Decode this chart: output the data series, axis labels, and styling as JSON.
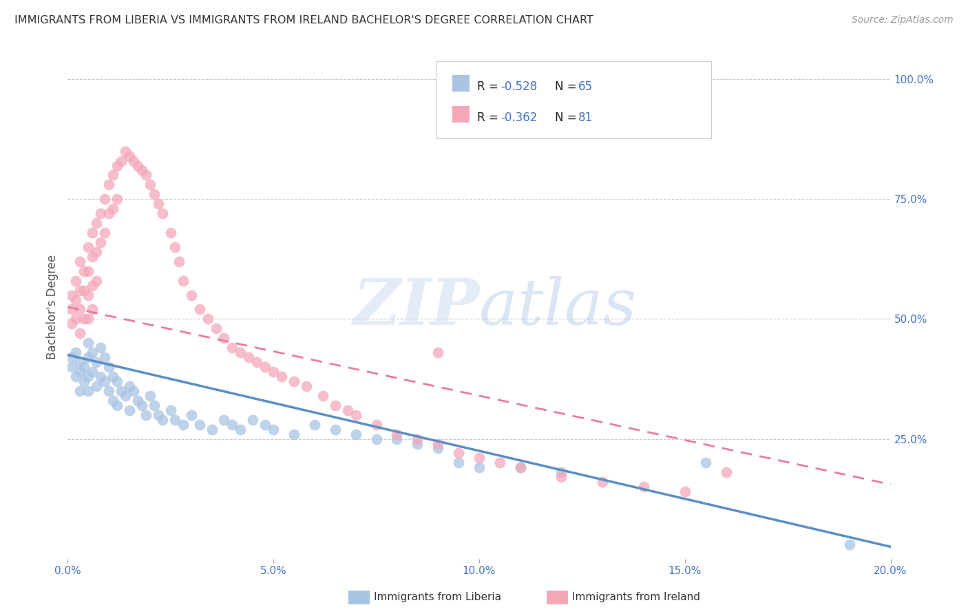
{
  "title": "IMMIGRANTS FROM LIBERIA VS IMMIGRANTS FROM IRELAND BACHELOR'S DEGREE CORRELATION CHART",
  "source": "Source: ZipAtlas.com",
  "ylabel": "Bachelor's Degree",
  "watermark_zip": "ZIP",
  "watermark_atlas": "atlas",
  "legend_liberia": "Immigrants from Liberia",
  "legend_ireland": "Immigrants from Ireland",
  "legend_r_liberia": "-0.528",
  "legend_n_liberia": "65",
  "legend_r_ireland": "-0.362",
  "legend_n_ireland": "81",
  "color_liberia": "#a8c4e2",
  "color_ireland": "#f4a7b9",
  "color_liberia_line": "#5b8ec4",
  "color_ireland_line": "#e87d9a",
  "color_text_blue": "#4472c4",
  "x_min": 0.0,
  "x_max": 0.2,
  "y_min": 0.0,
  "y_max": 1.05,
  "x_ticks": [
    0.0,
    0.05,
    0.1,
    0.15,
    0.2
  ],
  "x_tick_labels": [
    "0.0%",
    "5.0%",
    "10.0%",
    "15.0%",
    "20.0%"
  ],
  "y_ticks_right": [
    0.25,
    0.5,
    0.75,
    1.0
  ],
  "y_tick_labels_right": [
    "25.0%",
    "50.0%",
    "75.0%",
    "100.0%"
  ],
  "liberia_line_x0": 0.0,
  "liberia_line_x1": 0.2,
  "liberia_line_y0": 0.425,
  "liberia_line_y1": 0.025,
  "ireland_line_x0": 0.0,
  "ireland_line_x1": 0.2,
  "ireland_line_y0": 0.525,
  "ireland_line_y1": 0.155,
  "liberia_x": [
    0.001,
    0.001,
    0.002,
    0.002,
    0.003,
    0.003,
    0.003,
    0.004,
    0.004,
    0.005,
    0.005,
    0.005,
    0.005,
    0.006,
    0.006,
    0.007,
    0.007,
    0.008,
    0.008,
    0.009,
    0.009,
    0.01,
    0.01,
    0.011,
    0.011,
    0.012,
    0.012,
    0.013,
    0.014,
    0.015,
    0.015,
    0.016,
    0.017,
    0.018,
    0.019,
    0.02,
    0.021,
    0.022,
    0.023,
    0.025,
    0.026,
    0.028,
    0.03,
    0.032,
    0.035,
    0.038,
    0.04,
    0.042,
    0.045,
    0.048,
    0.05,
    0.055,
    0.06,
    0.065,
    0.07,
    0.075,
    0.08,
    0.085,
    0.09,
    0.095,
    0.1,
    0.11,
    0.12,
    0.155,
    0.19
  ],
  "liberia_y": [
    0.42,
    0.4,
    0.43,
    0.38,
    0.41,
    0.39,
    0.35,
    0.4,
    0.37,
    0.45,
    0.42,
    0.38,
    0.35,
    0.43,
    0.39,
    0.41,
    0.36,
    0.44,
    0.38,
    0.42,
    0.37,
    0.4,
    0.35,
    0.38,
    0.33,
    0.37,
    0.32,
    0.35,
    0.34,
    0.36,
    0.31,
    0.35,
    0.33,
    0.32,
    0.3,
    0.34,
    0.32,
    0.3,
    0.29,
    0.31,
    0.29,
    0.28,
    0.3,
    0.28,
    0.27,
    0.29,
    0.28,
    0.27,
    0.29,
    0.28,
    0.27,
    0.26,
    0.28,
    0.27,
    0.26,
    0.25,
    0.25,
    0.24,
    0.23,
    0.2,
    0.19,
    0.19,
    0.18,
    0.2,
    0.03
  ],
  "ireland_x": [
    0.001,
    0.001,
    0.001,
    0.002,
    0.002,
    0.002,
    0.003,
    0.003,
    0.003,
    0.003,
    0.004,
    0.004,
    0.004,
    0.005,
    0.005,
    0.005,
    0.005,
    0.006,
    0.006,
    0.006,
    0.006,
    0.007,
    0.007,
    0.007,
    0.008,
    0.008,
    0.009,
    0.009,
    0.01,
    0.01,
    0.011,
    0.011,
    0.012,
    0.012,
    0.013,
    0.014,
    0.015,
    0.016,
    0.017,
    0.018,
    0.019,
    0.02,
    0.021,
    0.022,
    0.023,
    0.025,
    0.026,
    0.027,
    0.028,
    0.03,
    0.032,
    0.034,
    0.036,
    0.038,
    0.04,
    0.042,
    0.044,
    0.046,
    0.048,
    0.05,
    0.052,
    0.055,
    0.058,
    0.062,
    0.065,
    0.068,
    0.07,
    0.075,
    0.08,
    0.085,
    0.09,
    0.095,
    0.1,
    0.105,
    0.11,
    0.12,
    0.13,
    0.14,
    0.15,
    0.16,
    0.09
  ],
  "ireland_y": [
    0.52,
    0.49,
    0.55,
    0.54,
    0.5,
    0.58,
    0.56,
    0.52,
    0.62,
    0.47,
    0.6,
    0.56,
    0.5,
    0.65,
    0.6,
    0.55,
    0.5,
    0.68,
    0.63,
    0.57,
    0.52,
    0.7,
    0.64,
    0.58,
    0.72,
    0.66,
    0.75,
    0.68,
    0.78,
    0.72,
    0.8,
    0.73,
    0.82,
    0.75,
    0.83,
    0.85,
    0.84,
    0.83,
    0.82,
    0.81,
    0.8,
    0.78,
    0.76,
    0.74,
    0.72,
    0.68,
    0.65,
    0.62,
    0.58,
    0.55,
    0.52,
    0.5,
    0.48,
    0.46,
    0.44,
    0.43,
    0.42,
    0.41,
    0.4,
    0.39,
    0.38,
    0.37,
    0.36,
    0.34,
    0.32,
    0.31,
    0.3,
    0.28,
    0.26,
    0.25,
    0.24,
    0.22,
    0.21,
    0.2,
    0.19,
    0.17,
    0.16,
    0.15,
    0.14,
    0.18,
    0.43
  ]
}
